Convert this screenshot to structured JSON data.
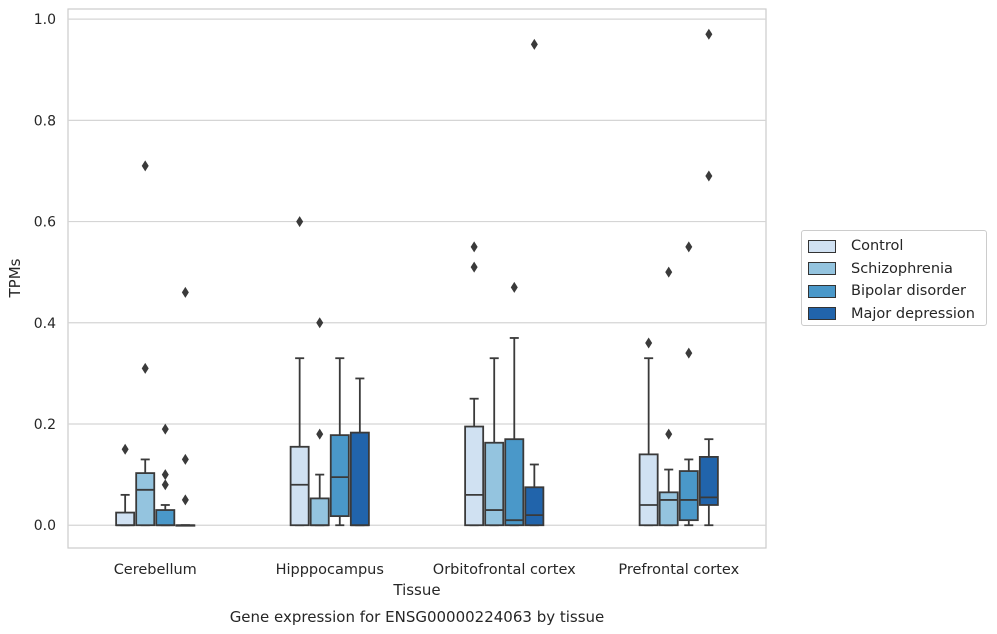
{
  "chart_data": {
    "type": "box",
    "title": "",
    "xlabel": "Tissue",
    "ylabel": "TPMs",
    "caption": "Gene expression for ENSG00000224063 by tissue",
    "ylim": [
      -0.045,
      1.02
    ],
    "yticks": [
      "0.0",
      "0.2",
      "0.4",
      "0.6",
      "0.8",
      "1.0"
    ],
    "grid": true,
    "legend_position": "right",
    "categories": [
      "Cerebellum",
      "Hipppocampus",
      "Orbitofrontal cortex",
      "Prefrontal cortex"
    ],
    "series": [
      {
        "name": "Control",
        "color": "#d0e1f2",
        "boxes": [
          {
            "q1": 0.0,
            "median": 0.0,
            "q3": 0.025,
            "whisker_low": 0.0,
            "whisker_high": 0.06,
            "outliers": [
              0.15
            ]
          },
          {
            "q1": 0.0,
            "median": 0.08,
            "q3": 0.155,
            "whisker_low": 0.0,
            "whisker_high": 0.33,
            "outliers": [
              0.6
            ]
          },
          {
            "q1": 0.0,
            "median": 0.06,
            "q3": 0.195,
            "whisker_low": 0.0,
            "whisker_high": 0.25,
            "outliers": [
              0.51,
              0.55
            ]
          },
          {
            "q1": 0.0,
            "median": 0.04,
            "q3": 0.14,
            "whisker_low": 0.0,
            "whisker_high": 0.33,
            "outliers": [
              0.36
            ]
          }
        ]
      },
      {
        "name": "Schizophrenia",
        "color": "#94c4df",
        "boxes": [
          {
            "q1": 0.0,
            "median": 0.07,
            "q3": 0.103,
            "whisker_low": 0.0,
            "whisker_high": 0.13,
            "outliers": [
              0.31,
              0.71
            ]
          },
          {
            "q1": 0.0,
            "median": 0.0,
            "q3": 0.053,
            "whisker_low": 0.0,
            "whisker_high": 0.1,
            "outliers": [
              0.18,
              0.4
            ]
          },
          {
            "q1": 0.0,
            "median": 0.03,
            "q3": 0.163,
            "whisker_low": 0.0,
            "whisker_high": 0.33,
            "outliers": []
          },
          {
            "q1": 0.0,
            "median": 0.05,
            "q3": 0.065,
            "whisker_low": 0.0,
            "whisker_high": 0.11,
            "outliers": [
              0.18,
              0.5
            ]
          }
        ]
      },
      {
        "name": "Bipolar disorder",
        "color": "#4a98c9",
        "boxes": [
          {
            "q1": 0.0,
            "median": 0.0,
            "q3": 0.03,
            "whisker_low": 0.0,
            "whisker_high": 0.04,
            "outliers": [
              0.08,
              0.1,
              0.19
            ]
          },
          {
            "q1": 0.018,
            "median": 0.095,
            "q3": 0.178,
            "whisker_low": 0.0,
            "whisker_high": 0.33,
            "outliers": []
          },
          {
            "q1": 0.0,
            "median": 0.01,
            "q3": 0.17,
            "whisker_low": 0.0,
            "whisker_high": 0.37,
            "outliers": [
              0.47
            ]
          },
          {
            "q1": 0.01,
            "median": 0.05,
            "q3": 0.107,
            "whisker_low": 0.0,
            "whisker_high": 0.13,
            "outliers": [
              0.34,
              0.55
            ]
          }
        ]
      },
      {
        "name": "Major depression",
        "color": "#2164ab",
        "boxes": [
          {
            "q1": 0.0,
            "median": 0.0,
            "q3": 0.0,
            "whisker_low": 0.0,
            "whisker_high": 0.0,
            "outliers": [
              0.05,
              0.13,
              0.46
            ]
          },
          {
            "q1": 0.0,
            "median": 0.0,
            "q3": 0.183,
            "whisker_low": 0.0,
            "whisker_high": 0.29,
            "outliers": []
          },
          {
            "q1": 0.0,
            "median": 0.02,
            "q3": 0.075,
            "whisker_low": 0.0,
            "whisker_high": 0.12,
            "outliers": [
              0.95
            ]
          },
          {
            "q1": 0.04,
            "median": 0.055,
            "q3": 0.135,
            "whisker_low": 0.0,
            "whisker_high": 0.17,
            "outliers": [
              0.69,
              0.97
            ]
          }
        ]
      }
    ]
  }
}
